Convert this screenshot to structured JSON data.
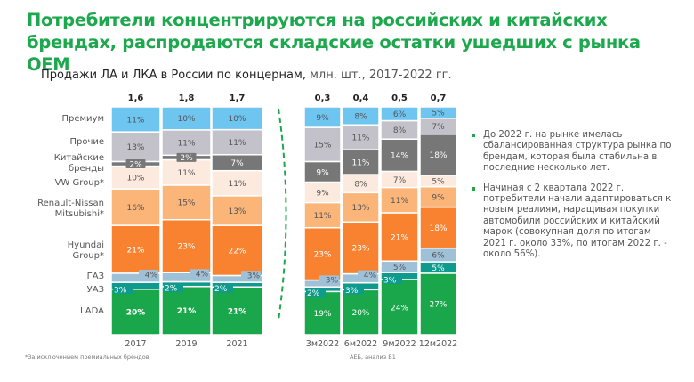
{
  "title": "Потребители концентрируются на российских и китайских брендах, распродаются складские остатки ушедших с рынка OEM",
  "subtitle": {
    "main": "Продажи ЛА и ЛКА в России по концернам,",
    "unit": " млн. шт., 2017-2022 гг."
  },
  "chart_data": {
    "type": "bar",
    "stacked": "percent",
    "categories": [
      "2017",
      "2019",
      "2021",
      "3м2022",
      "6м2022",
      "9м2022",
      "12м2022"
    ],
    "totals": [
      "1,6",
      "1,8",
      "1,7",
      "0,3",
      "0,4",
      "0,5",
      "0,7"
    ],
    "series": [
      {
        "name": "LADA",
        "color": "#1aa64b",
        "values": [
          20,
          21,
          21,
          19,
          20,
          24,
          27
        ]
      },
      {
        "name": "УАЗ",
        "color": "#0e9a8c",
        "values": [
          3,
          2,
          2,
          2,
          3,
          3,
          5
        ]
      },
      {
        "name": "ГАЗ",
        "color": "#9fc1d8",
        "values": [
          4,
          4,
          3,
          3,
          4,
          5,
          6
        ]
      },
      {
        "name": "Hyundai Group*",
        "color": "#f8822f",
        "values": [
          21,
          23,
          22,
          23,
          23,
          21,
          18
        ]
      },
      {
        "name": "Renault-Nissan Mitsubishi*",
        "color": "#fbb579",
        "values": [
          16,
          15,
          13,
          11,
          13,
          11,
          9
        ]
      },
      {
        "name": "VW Group*",
        "color": "#fdeade",
        "values": [
          10,
          11,
          11,
          9,
          8,
          7,
          5
        ]
      },
      {
        "name": "Китайские бренды",
        "color": "#777777",
        "values": [
          2,
          2,
          7,
          9,
          11,
          14,
          18
        ]
      },
      {
        "name": "Прочие",
        "color": "#c3c2ca",
        "values": [
          13,
          11,
          11,
          15,
          11,
          8,
          7
        ]
      },
      {
        "name": "Премиум",
        "color": "#6dc5f0",
        "values": [
          11,
          10,
          10,
          9,
          8,
          6,
          5
        ]
      }
    ],
    "value_suffix": "%",
    "legend": "left"
  },
  "notes": [
    "До 2022 г. на рынке имелась сбалансированная структура рынка по брендам, которая была стабильна в последние несколько лет.",
    "Начиная с 2 квартала 2022 г. потребители начали адаптироваться к новым реалиям, наращивая покупки автомобили российских и китайский марок (совокупная доля по итогам 2021 г. около 33%, по итогам 2022 г. - около 56%)."
  ],
  "footnote": "*За исключением премиальных брендов",
  "source": "АЕБ, анализ Б1",
  "accent_color": "#1ea84e"
}
